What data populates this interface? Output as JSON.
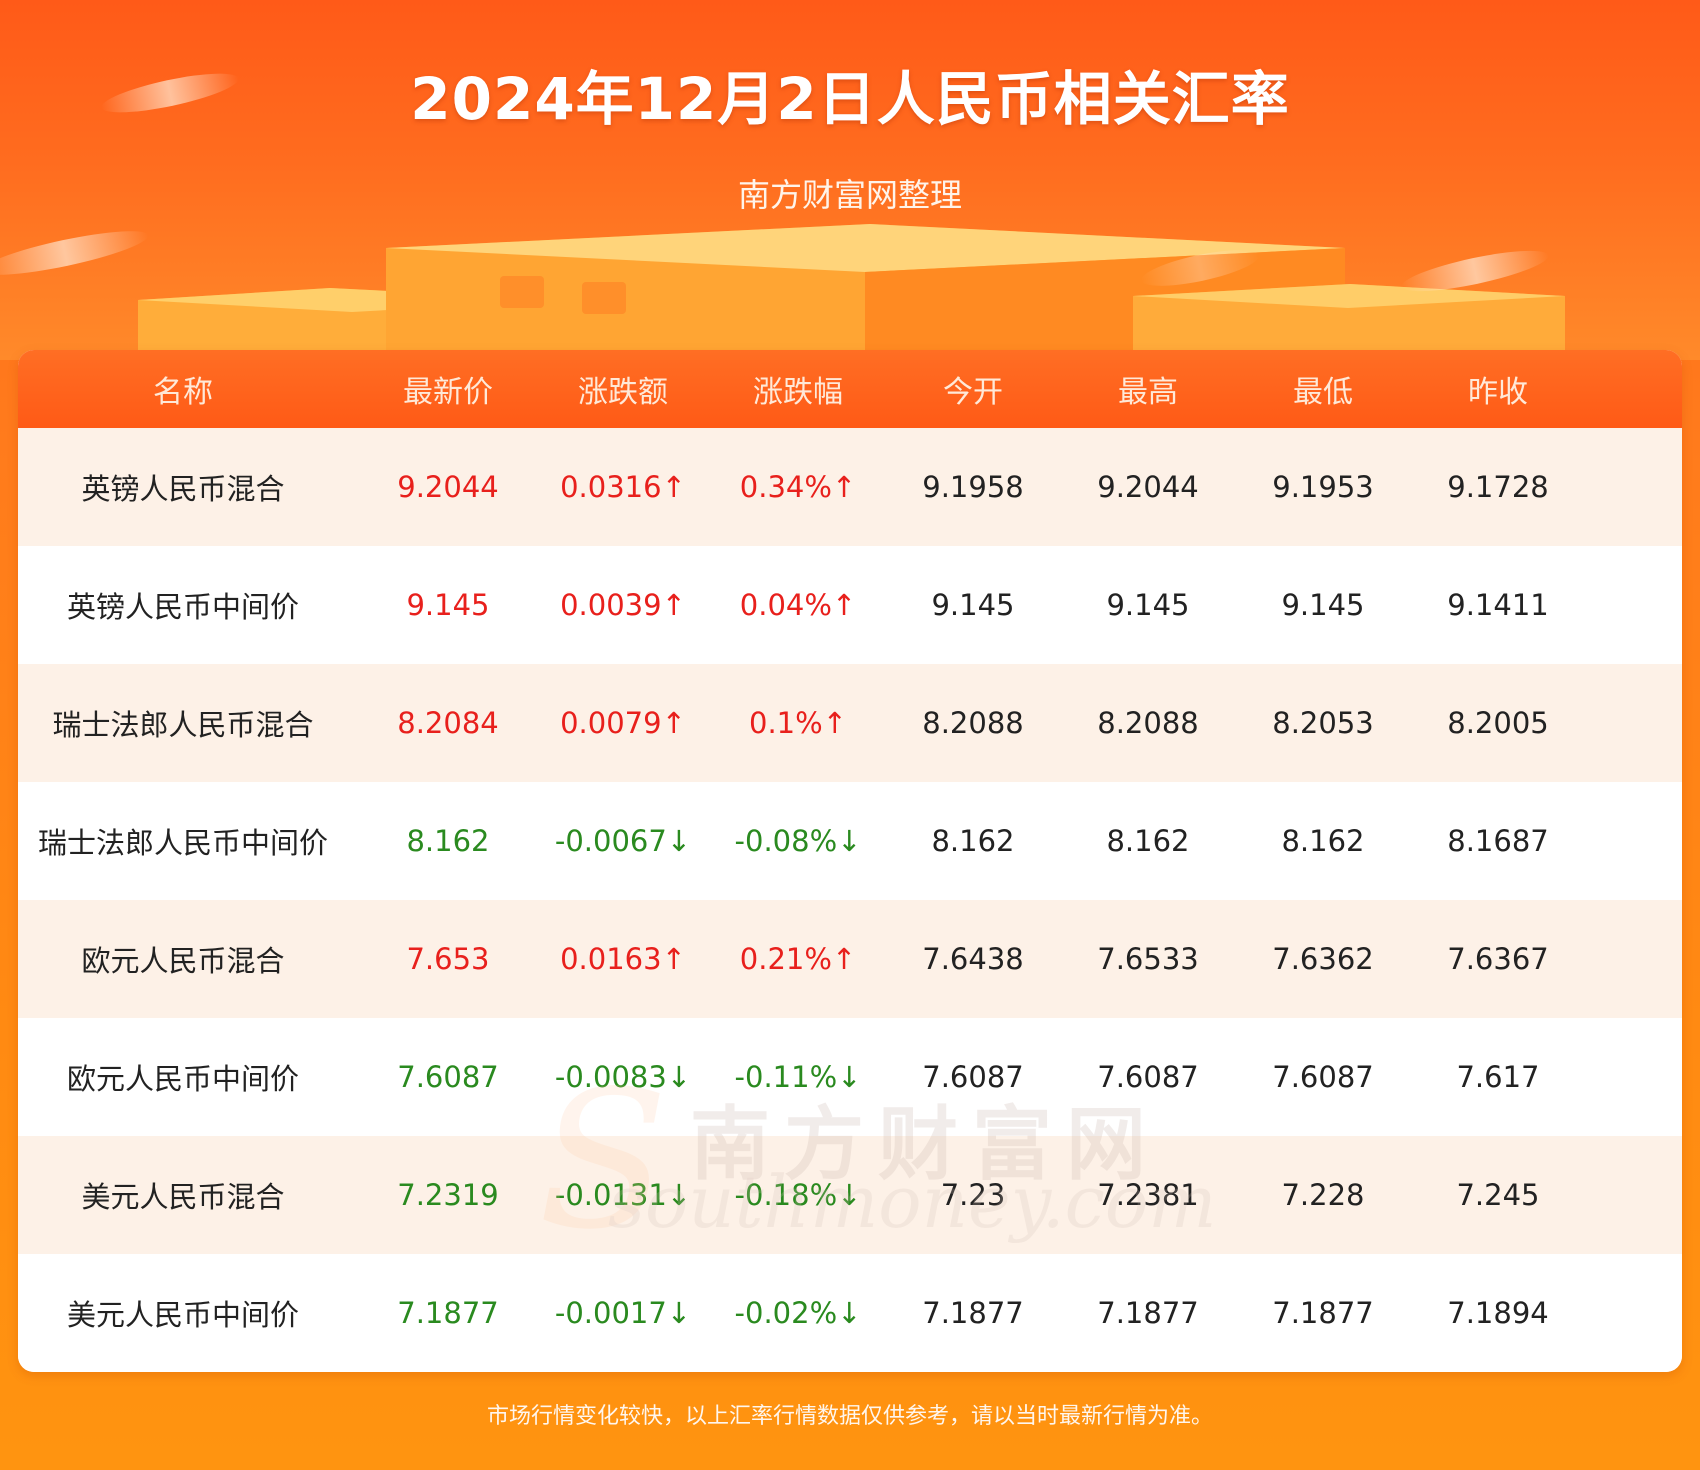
{
  "header": {
    "title": "2024年12月2日人民币相关汇率",
    "subtitle": "南方财富网整理"
  },
  "table": {
    "columns": [
      "名称",
      "最新价",
      "涨跌额",
      "涨跌幅",
      "今开",
      "最高",
      "最低",
      "昨收"
    ],
    "rows": [
      {
        "name": "英镑人民币混合",
        "latest": "9.2044",
        "change": "0.0316↑",
        "pct": "0.34%↑",
        "open": "9.1958",
        "high": "9.2044",
        "low": "9.1953",
        "prev": "9.1728",
        "direction": "up"
      },
      {
        "name": "英镑人民币中间价",
        "latest": "9.145",
        "change": "0.0039↑",
        "pct": "0.04%↑",
        "open": "9.145",
        "high": "9.145",
        "low": "9.145",
        "prev": "9.1411",
        "direction": "up"
      },
      {
        "name": "瑞士法郎人民币混合",
        "latest": "8.2084",
        "change": "0.0079↑",
        "pct": "0.1%↑",
        "open": "8.2088",
        "high": "8.2088",
        "low": "8.2053",
        "prev": "8.2005",
        "direction": "up"
      },
      {
        "name": "瑞士法郎人民币中间价",
        "latest": "8.162",
        "change": "-0.0067↓",
        "pct": "-0.08%↓",
        "open": "8.162",
        "high": "8.162",
        "low": "8.162",
        "prev": "8.1687",
        "direction": "down"
      },
      {
        "name": "欧元人民币混合",
        "latest": "7.653",
        "change": "0.0163↑",
        "pct": "0.21%↑",
        "open": "7.6438",
        "high": "7.6533",
        "low": "7.6362",
        "prev": "7.6367",
        "direction": "up"
      },
      {
        "name": "欧元人民币中间价",
        "latest": "7.6087",
        "change": "-0.0083↓",
        "pct": "-0.11%↓",
        "open": "7.6087",
        "high": "7.6087",
        "low": "7.6087",
        "prev": "7.617",
        "direction": "down"
      },
      {
        "name": "美元人民币混合",
        "latest": "7.2319",
        "change": "-0.0131↓",
        "pct": "-0.18%↓",
        "open": "7.23",
        "high": "7.2381",
        "low": "7.228",
        "prev": "7.245",
        "direction": "down"
      },
      {
        "name": "美元人民币中间价",
        "latest": "7.1877",
        "change": "-0.0017↓",
        "pct": "-0.02%↓",
        "open": "7.1877",
        "high": "7.1877",
        "low": "7.1877",
        "prev": "7.1894",
        "direction": "down"
      }
    ]
  },
  "watermark": {
    "cn": "南方财富网",
    "en": "southmoney.com"
  },
  "footer": {
    "disclaimer": "市场行情变化较快，以上汇率行情数据仅供参考，请以当时最新行情为准。"
  },
  "colors": {
    "up": "#e8201c",
    "down": "#2a8a1f",
    "header_bg": "#ff6a1f",
    "row_alt": "#fdf1e7"
  }
}
